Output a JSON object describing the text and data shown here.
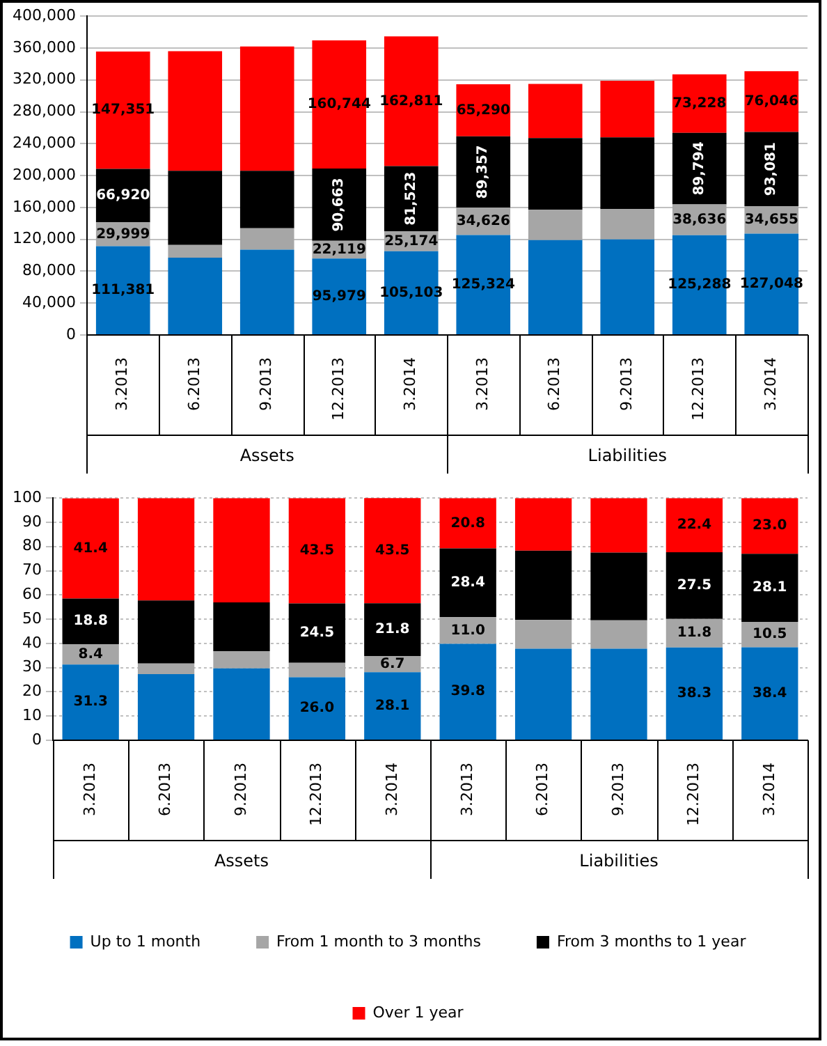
{
  "chart_data": [
    {
      "type": "bar",
      "stacked": true,
      "categories": [
        "3.2013",
        "6.2013",
        "9.2013",
        "12.2013",
        "3.2014",
        "3.2013",
        "6.2013",
        "9.2013",
        "12.2013",
        "3.2014"
      ],
      "annotations": [
        "Assets",
        "Liabilities"
      ],
      "ylim": [
        0,
        400000
      ],
      "yticks": [
        0,
        {
          "value": 40000,
          "label": "40,000"
        },
        {
          "value": 80000,
          "label": "80,000"
        },
        {
          "value": 120000,
          "label": "120,000"
        },
        {
          "value": 160000,
          "label": "160,000"
        },
        {
          "value": 200000,
          "label": "200,000"
        },
        {
          "value": 240000,
          "label": "240,000"
        },
        {
          "value": 280000,
          "label": "280,000"
        },
        {
          "value": 320000,
          "label": "320,000"
        },
        {
          "value": 360000,
          "label": "360,000"
        },
        {
          "value": 400000,
          "label": "400,000"
        }
      ],
      "grid": "y",
      "legend": false,
      "series": [
        {
          "color": "#0070c0",
          "values": [
            111381,
            97000,
            107000,
            95979,
            105103,
            125324,
            119000,
            120000,
            125288,
            127048
          ],
          "value_labels": [
            "111,381",
            null,
            null,
            "95,979",
            "105,103",
            "125,324",
            null,
            null,
            "125,288",
            "127,048"
          ]
        },
        {
          "color": "#a6a6a6",
          "values": [
            29999,
            16000,
            27000,
            22119,
            25174,
            34626,
            38000,
            38000,
            38636,
            34655
          ],
          "value_labels": [
            "29,999",
            null,
            null,
            "22,119",
            "25,174",
            "34,626",
            null,
            null,
            "38,636",
            "34,655"
          ]
        },
        {
          "color": "#000000",
          "values": [
            66920,
            93000,
            72000,
            90663,
            81523,
            89357,
            90000,
            90000,
            89794,
            93081
          ],
          "value_labels": [
            "66,920",
            null,
            null,
            "90,663",
            "81,523",
            "89,357",
            null,
            null,
            "89,794",
            "93,081"
          ]
        },
        {
          "color": "#ff0000",
          "values": [
            147351,
            150000,
            156000,
            160744,
            162811,
            65290,
            68000,
            71000,
            73228,
            76046
          ],
          "value_labels": [
            "147,351",
            null,
            null,
            "160,744",
            "162,811",
            "65,290",
            null,
            null,
            "73,228",
            "76,046"
          ]
        }
      ]
    },
    {
      "type": "bar",
      "stacked": true,
      "categories": [
        "3.2013",
        "6.2013",
        "9.2013",
        "12.2013",
        "3.2014",
        "3.2013",
        "6.2013",
        "9.2013",
        "12.2013",
        "3.2014"
      ],
      "annotations": [
        "Assets",
        "Liabilities"
      ],
      "ylim": [
        0,
        100
      ],
      "yticks": [
        0,
        10,
        20,
        30,
        40,
        50,
        60,
        70,
        80,
        90,
        100
      ],
      "grid": "y",
      "legend": "bottom",
      "series": [
        {
          "name": "Up to 1 month",
          "color": "#0070c0",
          "values": [
            31.3,
            27.3,
            29.7,
            26.0,
            28.1,
            39.8,
            37.8,
            37.8,
            38.3,
            38.4
          ],
          "value_labels": [
            "31.3",
            null,
            null,
            "26.0",
            "28.1",
            "39.8",
            null,
            null,
            "38.3",
            "38.4"
          ]
        },
        {
          "name": "From 1 month to 3 months",
          "color": "#a6a6a6",
          "values": [
            8.4,
            4.4,
            7.1,
            6.0,
            6.7,
            11.0,
            11.9,
            11.7,
            11.8,
            10.5
          ],
          "value_labels": [
            "8.4",
            null,
            null,
            null,
            "6.7",
            "11.0",
            null,
            null,
            "11.8",
            "10.5"
          ]
        },
        {
          "name": "From 3 months to 1 year",
          "color": "#000000",
          "values": [
            18.8,
            26.0,
            20.1,
            24.5,
            21.8,
            28.4,
            28.6,
            28.0,
            27.5,
            28.1
          ],
          "value_labels": [
            "18.8",
            null,
            null,
            "24.5",
            "21.8",
            "28.4",
            null,
            null,
            "27.5",
            "28.1"
          ]
        },
        {
          "name": "Over 1 year",
          "color": "#ff0000",
          "values": [
            41.4,
            42.3,
            43.1,
            43.5,
            43.5,
            20.8,
            21.7,
            22.5,
            22.4,
            23.0
          ],
          "value_labels": [
            "41.4",
            null,
            null,
            "43.5",
            "43.5",
            "20.8",
            null,
            null,
            "22.4",
            "23.0"
          ]
        }
      ]
    }
  ]
}
